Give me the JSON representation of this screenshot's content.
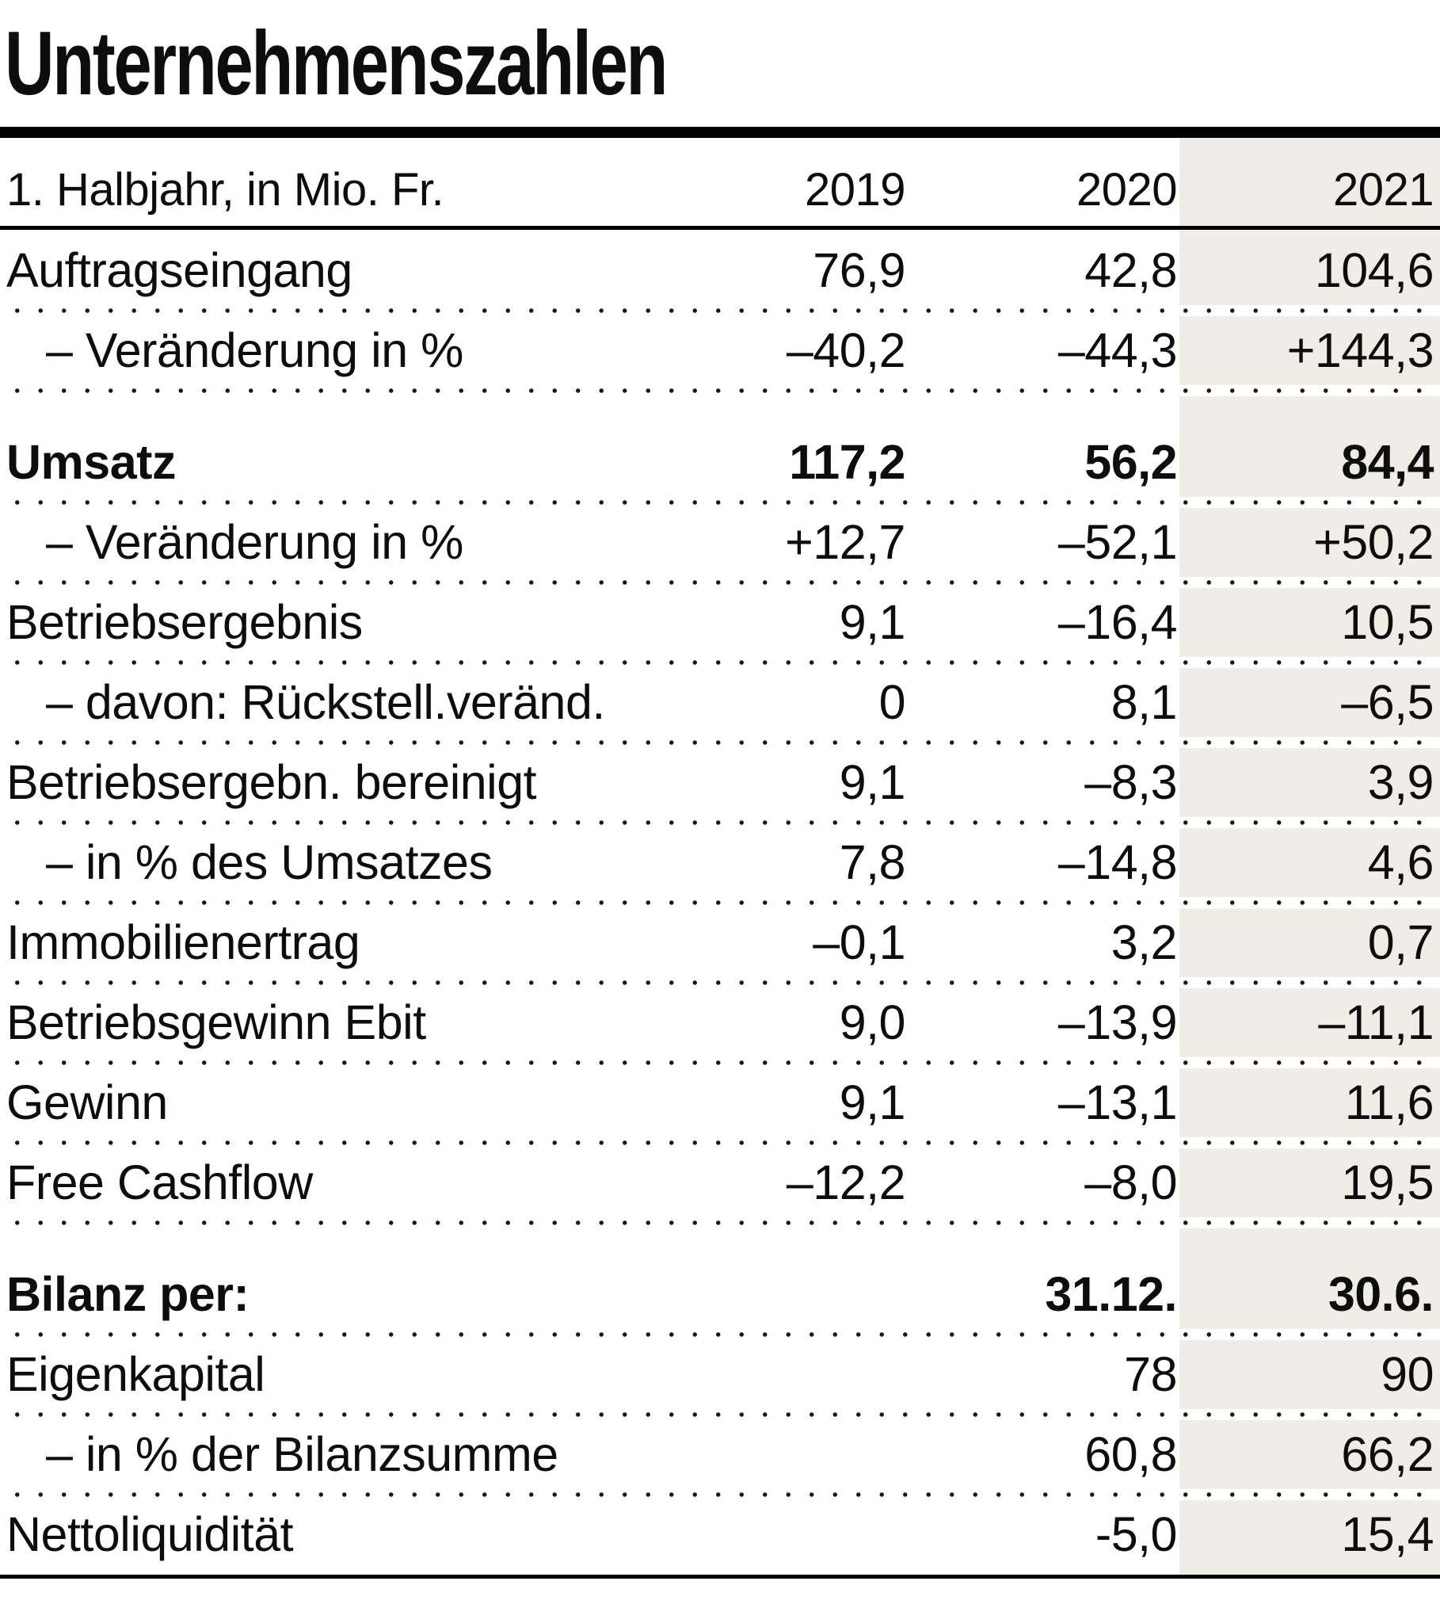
{
  "title": "Unternehmenszahlen",
  "header": {
    "label": "1. Halbjahr, in Mio. Fr.",
    "years": [
      "2019",
      "2020",
      "2021"
    ]
  },
  "rows": [
    {
      "label": "Auftragseingang",
      "indent": false,
      "bold": false,
      "gap_before": false,
      "values": [
        "76,9",
        "42,8",
        "104,6"
      ]
    },
    {
      "label": "– Veränderung in %",
      "indent": true,
      "bold": false,
      "gap_before": false,
      "values": [
        "–40,2",
        "–44,3",
        "+144,3"
      ]
    },
    {
      "label": "Umsatz",
      "indent": false,
      "bold": true,
      "gap_before": true,
      "values": [
        "117,2",
        "56,2",
        "84,4"
      ]
    },
    {
      "label": "– Veränderung in %",
      "indent": true,
      "bold": false,
      "gap_before": false,
      "values": [
        "+12,7",
        "–52,1",
        "+50,2"
      ]
    },
    {
      "label": "Betriebsergebnis",
      "indent": false,
      "bold": false,
      "gap_before": false,
      "values": [
        "9,1",
        "–16,4",
        "10,5"
      ]
    },
    {
      "label": "– davon: Rückstell.veränd.",
      "indent": true,
      "bold": false,
      "gap_before": false,
      "values": [
        "0",
        "8,1",
        "–6,5"
      ]
    },
    {
      "label": "Betriebsergebn. bereinigt",
      "indent": false,
      "bold": false,
      "gap_before": false,
      "values": [
        "9,1",
        "–8,3",
        "3,9"
      ]
    },
    {
      "label": "– in % des Umsatzes",
      "indent": true,
      "bold": false,
      "gap_before": false,
      "values": [
        "7,8",
        "–14,8",
        "4,6"
      ]
    },
    {
      "label": "Immobilienertrag",
      "indent": false,
      "bold": false,
      "gap_before": false,
      "values": [
        "–0,1",
        "3,2",
        "0,7"
      ]
    },
    {
      "label": "Betriebsgewinn Ebit",
      "indent": false,
      "bold": false,
      "gap_before": false,
      "values": [
        "9,0",
        "–13,9",
        "–11,1"
      ]
    },
    {
      "label": "Gewinn",
      "indent": false,
      "bold": false,
      "gap_before": false,
      "values": [
        "9,1",
        "–13,1",
        "11,6"
      ]
    },
    {
      "label": "Free Cashflow",
      "indent": false,
      "bold": false,
      "gap_before": false,
      "values": [
        "–12,2",
        "–8,0",
        "19,5"
      ]
    },
    {
      "label": "Bilanz per:",
      "indent": false,
      "bold": true,
      "gap_before": true,
      "values": [
        "",
        "31.12.",
        "30.6."
      ]
    },
    {
      "label": "Eigenkapital",
      "indent": false,
      "bold": false,
      "gap_before": false,
      "values": [
        "",
        "78",
        "90"
      ]
    },
    {
      "label": "– in % der Bilanzsumme",
      "indent": true,
      "bold": false,
      "gap_before": false,
      "values": [
        "",
        "60,8",
        "66,2"
      ]
    },
    {
      "label": "Nettoliquidität",
      "indent": false,
      "bold": false,
      "gap_before": false,
      "values": [
        "",
        "-5,0",
        "15,4"
      ]
    }
  ],
  "colors": {
    "highlight_column_bg": "#efede6",
    "text": "#0d0d0d",
    "rule": "#000000",
    "separator_dot": "#161616"
  },
  "chart_data": {
    "type": "table",
    "title": "Unternehmenszahlen",
    "unit_note": "1. Halbjahr, in Mio. Fr.",
    "categories": [
      "2019",
      "2020",
      "2021"
    ],
    "highlighted_category": "2021",
    "series": [
      {
        "name": "Auftragseingang",
        "values": [
          76.9,
          42.8,
          104.6
        ]
      },
      {
        "name": "Auftragseingang – Veränderung in %",
        "values": [
          -40.2,
          -44.3,
          144.3
        ]
      },
      {
        "name": "Umsatz",
        "values": [
          117.2,
          56.2,
          84.4
        ]
      },
      {
        "name": "Umsatz – Veränderung in %",
        "values": [
          12.7,
          -52.1,
          50.2
        ]
      },
      {
        "name": "Betriebsergebnis",
        "values": [
          9.1,
          -16.4,
          10.5
        ]
      },
      {
        "name": "davon: Rückstell.veränd.",
        "values": [
          0,
          8.1,
          -6.5
        ]
      },
      {
        "name": "Betriebsergebn. bereinigt",
        "values": [
          9.1,
          -8.3,
          3.9
        ]
      },
      {
        "name": "Betriebsergebn. bereinigt in % des Umsatzes",
        "values": [
          7.8,
          -14.8,
          4.6
        ]
      },
      {
        "name": "Immobilienertrag",
        "values": [
          -0.1,
          3.2,
          0.7
        ]
      },
      {
        "name": "Betriebsgewinn Ebit",
        "values": [
          9.0,
          -13.9,
          -11.1
        ]
      },
      {
        "name": "Gewinn",
        "values": [
          9.1,
          -13.1,
          11.6
        ]
      },
      {
        "name": "Free Cashflow",
        "values": [
          -12.2,
          -8.0,
          19.5
        ]
      },
      {
        "name": "Bilanz per:",
        "values": [
          null,
          "31.12.",
          "30.6."
        ]
      },
      {
        "name": "Eigenkapital",
        "values": [
          null,
          78,
          90
        ]
      },
      {
        "name": "Eigenkapital in % der Bilanzsumme",
        "values": [
          null,
          60.8,
          66.2
        ]
      },
      {
        "name": "Nettoliquidität",
        "values": [
          null,
          -5.0,
          15.4
        ]
      }
    ]
  }
}
